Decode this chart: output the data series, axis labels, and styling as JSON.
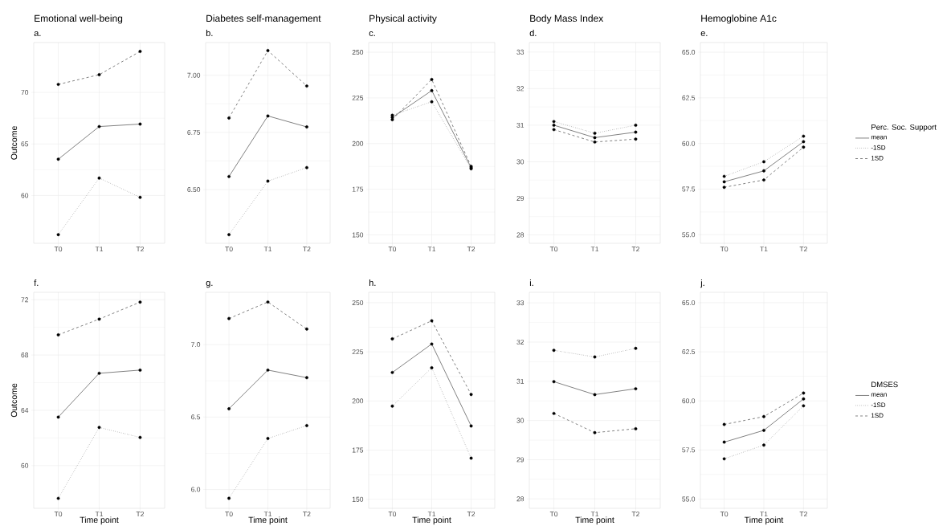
{
  "chart_data": [
    {
      "type": "line",
      "title": "Emotional well-being",
      "subtitle": "a.",
      "ylabel": "Outcome",
      "categories": [
        "T0",
        "T1",
        "T2"
      ],
      "ylim": [
        55.36,
        74.84
      ],
      "yticks": [
        60,
        65,
        70
      ],
      "grid": true,
      "marker": "circle",
      "series": [
        {
          "line_style": "solid",
          "color": "#000000",
          "values": [
            63.52,
            66.69,
            66.93
          ]
        },
        {
          "line_style": "dotted",
          "color": "#000000",
          "values": [
            56.2,
            61.69,
            59.82
          ]
        },
        {
          "line_style": "dashed",
          "color": "#000000",
          "values": [
            70.78,
            71.72,
            73.98
          ]
        }
      ]
    },
    {
      "type": "line",
      "title": "Diabetes self-management",
      "subtitle": "b.",
      "categories": [
        "T0",
        "T1",
        "T2"
      ],
      "ylim": [
        6.265,
        7.143
      ],
      "yticks": [
        {
          "value": 6.5,
          "label": "6.50"
        },
        {
          "value": 6.75,
          "label": "6.75"
        },
        {
          "value": 7.0,
          "label": "7.00"
        }
      ],
      "grid": true,
      "marker": "circle",
      "series": [
        {
          "line_style": "solid",
          "color": "#000000",
          "values": [
            6.557,
            6.822,
            6.774
          ]
        },
        {
          "line_style": "dotted",
          "color": "#000000",
          "values": [
            6.303,
            6.537,
            6.596
          ]
        },
        {
          "line_style": "dashed",
          "color": "#000000",
          "values": [
            6.813,
            7.108,
            6.953
          ]
        }
      ]
    },
    {
      "type": "line",
      "title": "Physical activity",
      "subtitle": "c.",
      "categories": [
        "T0",
        "T1",
        "T2"
      ],
      "ylim": [
        145.4,
        255.3
      ],
      "yticks": [
        150,
        175,
        200,
        225,
        250
      ],
      "grid": true,
      "marker": "circle",
      "series": [
        {
          "line_style": "solid",
          "color": "#000000",
          "values": [
            214.3,
            229.0,
            186.8
          ]
        },
        {
          "line_style": "dotted",
          "color": "#000000",
          "values": [
            215.5,
            222.9,
            186.2
          ]
        },
        {
          "line_style": "dashed",
          "color": "#000000",
          "values": [
            213.1,
            235.1,
            187.5
          ]
        }
      ]
    },
    {
      "type": "line",
      "title": "Body Mass Index",
      "subtitle": "d.",
      "categories": [
        "T0",
        "T1",
        "T2"
      ],
      "ylim": [
        27.77,
        33.26
      ],
      "yticks": [
        28,
        29,
        30,
        31,
        32,
        33
      ],
      "grid": true,
      "marker": "circle",
      "series": [
        {
          "line_style": "solid",
          "color": "#000000",
          "values": [
            31.0,
            30.66,
            30.81
          ]
        },
        {
          "line_style": "dotted",
          "color": "#000000",
          "values": [
            31.1,
            30.78,
            31.0
          ]
        },
        {
          "line_style": "dashed",
          "color": "#000000",
          "values": [
            30.88,
            30.54,
            30.62
          ]
        }
      ]
    },
    {
      "type": "line",
      "title": "Hemoglobine A1c",
      "subtitle": "e.",
      "categories": [
        "T0",
        "T1",
        "T2"
      ],
      "ylim": [
        54.53,
        65.53
      ],
      "yticks": [
        {
          "value": 55,
          "label": "55.0"
        },
        {
          "value": 57.5,
          "label": "57.5"
        },
        {
          "value": 60,
          "label": "60.0"
        },
        {
          "value": 62.5,
          "label": "62.5"
        },
        {
          "value": 65,
          "label": "65.0"
        }
      ],
      "grid": true,
      "marker": "circle",
      "legend": "right",
      "legend_title": "Perc. Soc. Support",
      "series": [
        {
          "name": "mean",
          "line_style": "solid",
          "color": "#000000",
          "values": [
            57.9,
            58.5,
            60.1
          ]
        },
        {
          "name": "-1SD",
          "line_style": "dotted",
          "color": "#000000",
          "values": [
            58.2,
            59.0,
            60.4
          ]
        },
        {
          "name": "1SD",
          "line_style": "dashed",
          "color": "#000000",
          "values": [
            57.6,
            58.0,
            59.8
          ]
        }
      ]
    },
    {
      "type": "line",
      "title": "f.",
      "ylabel": "Outcome",
      "xlabel": "Time point",
      "categories": [
        "T0",
        "T1",
        "T2"
      ],
      "ylim": [
        56.91,
        72.54
      ],
      "yticks": [
        60,
        64,
        68,
        72
      ],
      "grid": true,
      "marker": "circle",
      "series": [
        {
          "line_style": "solid",
          "color": "#000000",
          "values": [
            63.51,
            66.68,
            66.91
          ]
        },
        {
          "line_style": "dotted",
          "color": "#000000",
          "values": [
            57.63,
            62.76,
            62.04
          ]
        },
        {
          "line_style": "dashed",
          "color": "#000000",
          "values": [
            69.46,
            70.6,
            71.83
          ]
        }
      ]
    },
    {
      "type": "line",
      "title": "g.",
      "xlabel": "Time point",
      "categories": [
        "T0",
        "T1",
        "T2"
      ],
      "ylim": [
        5.87,
        7.361
      ],
      "yticks": [
        {
          "value": 6.0,
          "label": "6.0"
        },
        {
          "value": 6.5,
          "label": "6.5"
        },
        {
          "value": 7.0,
          "label": "7.0"
        }
      ],
      "grid": true,
      "marker": "circle",
      "series": [
        {
          "line_style": "solid",
          "color": "#000000",
          "values": [
            6.557,
            6.824,
            6.772
          ]
        },
        {
          "line_style": "dotted",
          "color": "#000000",
          "values": [
            5.939,
            6.352,
            6.441
          ]
        },
        {
          "line_style": "dashed",
          "color": "#000000",
          "values": [
            7.18,
            7.294,
            7.107
          ]
        }
      ]
    },
    {
      "type": "line",
      "title": "h.",
      "xlabel": "Time point",
      "categories": [
        "T0",
        "T1",
        "T2"
      ],
      "ylim": [
        145.4,
        255.3
      ],
      "yticks": [
        150,
        175,
        200,
        225,
        250
      ],
      "grid": true,
      "marker": "circle",
      "series": [
        {
          "line_style": "solid",
          "color": "#000000",
          "values": [
            214.5,
            229.0,
            187.3
          ]
        },
        {
          "line_style": "dotted",
          "color": "#000000",
          "values": [
            197.4,
            216.9,
            170.9
          ]
        },
        {
          "line_style": "dashed",
          "color": "#000000",
          "values": [
            231.6,
            240.8,
            203.3
          ]
        }
      ]
    },
    {
      "type": "line",
      "title": "i.",
      "xlabel": "Time point",
      "categories": [
        "T0",
        "T1",
        "T2"
      ],
      "ylim": [
        27.76,
        33.27
      ],
      "yticks": [
        28,
        29,
        30,
        31,
        32,
        33
      ],
      "grid": true,
      "marker": "circle",
      "series": [
        {
          "line_style": "solid",
          "color": "#000000",
          "values": [
            30.99,
            30.66,
            30.81
          ]
        },
        {
          "line_style": "dotted",
          "color": "#000000",
          "values": [
            31.79,
            31.62,
            31.84
          ]
        },
        {
          "line_style": "dashed",
          "color": "#000000",
          "values": [
            30.18,
            29.69,
            29.79
          ]
        }
      ]
    },
    {
      "type": "line",
      "title": "j.",
      "xlabel": "Time point",
      "categories": [
        "T0",
        "T1",
        "T2"
      ],
      "ylim": [
        54.53,
        65.53
      ],
      "yticks": [
        {
          "value": 55,
          "label": "55.0"
        },
        {
          "value": 57.5,
          "label": "57.5"
        },
        {
          "value": 60,
          "label": "60.0"
        },
        {
          "value": 62.5,
          "label": "62.5"
        },
        {
          "value": 65,
          "label": "65.0"
        }
      ],
      "grid": true,
      "marker": "circle",
      "legend": "right",
      "legend_title": "DMSES",
      "series": [
        {
          "name": "mean",
          "line_style": "solid",
          "color": "#000000",
          "values": [
            57.9,
            58.5,
            60.1
          ]
        },
        {
          "name": "-1SD",
          "line_style": "dotted",
          "color": "#000000",
          "values": [
            57.05,
            57.75,
            59.75
          ]
        },
        {
          "name": "1SD",
          "line_style": "dashed",
          "color": "#000000",
          "values": [
            58.8,
            59.2,
            60.4
          ]
        }
      ]
    }
  ]
}
